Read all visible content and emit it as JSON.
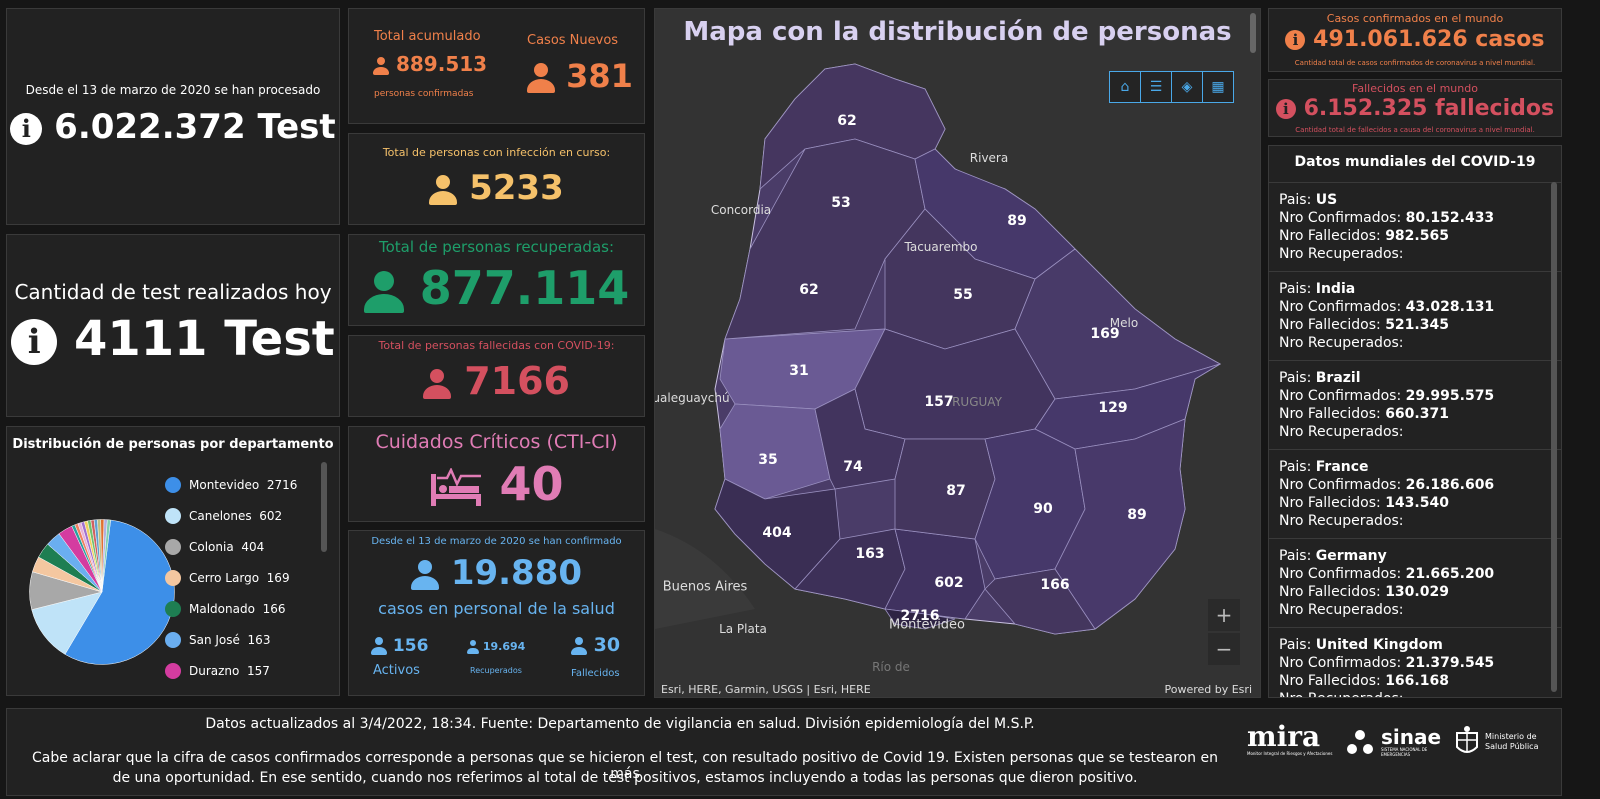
{
  "tests_total": {
    "caption": "Desde el 13 de marzo de 2020 se han procesado",
    "value": "6.022.372 Test"
  },
  "tests_today": {
    "caption": "Cantidad de test realizados hoy",
    "value": "4111 Test"
  },
  "distribution": {
    "title": "Distribución de personas por departamento",
    "items": [
      {
        "name": "Montevideo",
        "value": "2716",
        "color": "#3d8fe8"
      },
      {
        "name": "Canelones",
        "value": "602",
        "color": "#bfe3f8"
      },
      {
        "name": "Colonia",
        "value": "404",
        "color": "#a8a8a8"
      },
      {
        "name": "Cerro Largo",
        "value": "169",
        "color": "#f4c7a0"
      },
      {
        "name": "Maldonado",
        "value": "166",
        "color": "#1e7e52"
      },
      {
        "name": "San José",
        "value": "163",
        "color": "#6aaef0"
      },
      {
        "name": "Durazno",
        "value": "157",
        "color": "#d43ca0"
      }
    ]
  },
  "total_acumulado": {
    "label": "Total acumulado",
    "value": "889.513",
    "sublabel": "personas confirmadas"
  },
  "casos_nuevos": {
    "label": "Casos Nuevos",
    "value": "381"
  },
  "infeccion": {
    "label": "Total de personas con infección en curso:",
    "value": "5233"
  },
  "recuperadas": {
    "label": "Total de personas recuperadas:",
    "value": "877.114"
  },
  "fallecidas": {
    "label": "Total de personas fallecidas con COVID-19:",
    "value": "7166"
  },
  "cti": {
    "label": "Cuidados Críticos (CTI-CI)",
    "value": "40"
  },
  "salud": {
    "caption": "Desde el 13 de marzo de 2020 se han confirmado",
    "value": "19.880",
    "sublabel": "casos en personal de la salud",
    "activos": {
      "value": "156",
      "label": "Activos"
    },
    "recuperados": {
      "value": "19.694",
      "label": "Recuperados"
    },
    "fallecidos": {
      "value": "30",
      "label": "Fallecidos"
    }
  },
  "map": {
    "title": "Mapa con la distribución de personas",
    "attribution": "Esri, HERE, Garmin, USGS | Esri, HERE",
    "powered": "Powered by Esri",
    "zoom_in": "+",
    "zoom_out": "−",
    "cities": {
      "rivera": "Rivera",
      "concordia": "Concordia",
      "tacuarembo": "Tacuarembo",
      "melo": "Melo",
      "gualeguaychu": "ualeguaychú",
      "buenos_aires": "Buenos Aires",
      "la_plata": "La Plata",
      "montevideo": "Montevideo",
      "uruguay": "RUGUAY",
      "rio": "Río de"
    },
    "numbers": {
      "artigas": "62",
      "salto": "53",
      "rivera": "89",
      "paysandu": "62",
      "tacuarembo": "55",
      "cerro_largo": "169",
      "rio_negro": "31",
      "durazno": "157",
      "treinta_tres": "129",
      "soriano": "35",
      "flores": "74",
      "florida": "87",
      "lavalleja": "90",
      "rocha": "89",
      "colonia": "404",
      "san_jose": "163",
      "canelones": "602",
      "maldonado": "166",
      "montevideo": "2716"
    }
  },
  "mundo_confirmados": {
    "label": "Casos confirmados en el mundo",
    "value": "491.061.626 casos",
    "sublabel": "Cantidad total de casos confirmados de coronavirus a nivel mundial."
  },
  "mundo_fallecidos": {
    "label": "Fallecidos en el mundo",
    "value": "6.152.325 fallecidos",
    "sublabel": "Cantidad total de fallecidos a causa del coronavirus a nivel mundial."
  },
  "mundiales": {
    "title": "Datos mundiales del COVID-19",
    "labels": {
      "pais": "Pais: ",
      "confirmados": "Nro Confirmados: ",
      "fallecidos": "Nro Fallecidos: ",
      "recuperados": "Nro Recuperados:"
    },
    "countries": [
      {
        "name": "US",
        "confirmados": "80.152.433",
        "fallecidos": "982.565"
      },
      {
        "name": "India",
        "confirmados": "43.028.131",
        "fallecidos": "521.345"
      },
      {
        "name": "Brazil",
        "confirmados": "29.995.575",
        "fallecidos": "660.371"
      },
      {
        "name": "France",
        "confirmados": "26.186.606",
        "fallecidos": "143.540"
      },
      {
        "name": "Germany",
        "confirmados": "21.665.200",
        "fallecidos": "130.029"
      },
      {
        "name": "United Kingdom",
        "confirmados": "21.379.545",
        "fallecidos": "166.168"
      }
    ]
  },
  "footer": {
    "line1": "Datos actualizados al 3/4/2022, 18:34. Fuente: Departamento de vigilancia en salud. División epidemiología del M.S.P.",
    "line2": "Cabe aclarar que la cifra de casos confirmados corresponde a personas que se hicieron el test, con resultado positivo de Covid 19. Existen personas que se testearon en más",
    "line3": "de una oportunidad. En ese sentido, cuando nos referimos al total de test positivos, estamos incluyendo a todas las personas que dieron positivo."
  },
  "logos": {
    "mira": "mira",
    "mira_sub": "Monitor Integral de Riesgos y Afectaciones",
    "sinae": "sinae",
    "sinae_sub": "SISTEMA NACIONAL DE EMERGENCIAS",
    "ministerio": "Ministerio de Salud Pública"
  }
}
